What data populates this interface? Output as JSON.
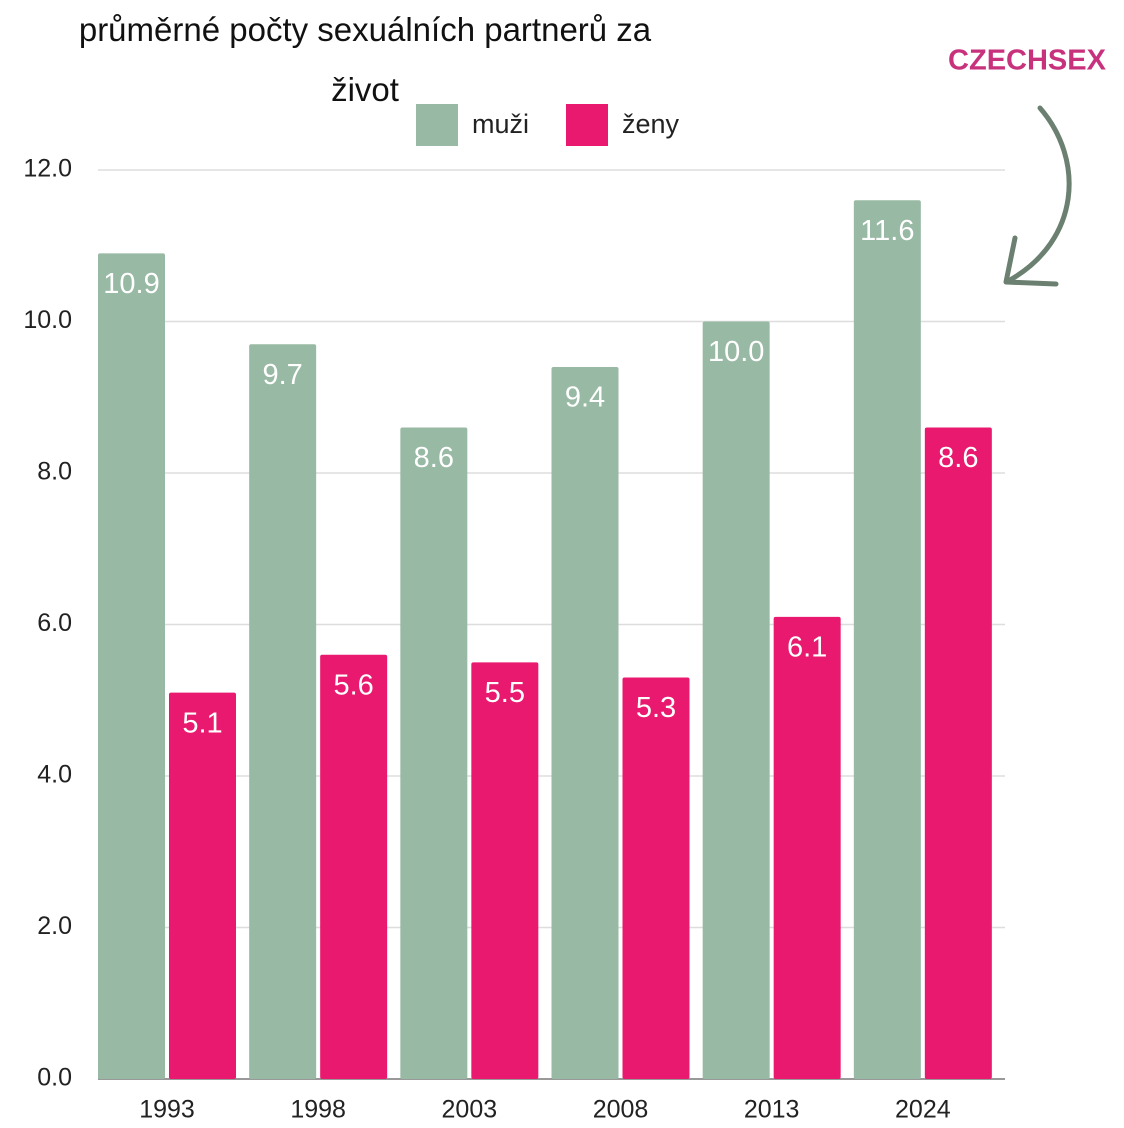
{
  "chart_data": {
    "type": "bar",
    "title": "průměrné počty sexuálních partnerů za život",
    "brand": "CZECHSEX",
    "categories": [
      "1993",
      "1998",
      "2003",
      "2008",
      "2013",
      "2024"
    ],
    "series": [
      {
        "name": "muži",
        "color": "#98b9a4",
        "values": [
          10.9,
          9.7,
          8.6,
          9.4,
          10.0,
          11.6
        ],
        "value_labels": [
          "10.9",
          "9.7",
          "8.6",
          "9.4",
          "10.0",
          "11.6"
        ]
      },
      {
        "name": "ženy",
        "color": "#e8196e",
        "values": [
          5.1,
          5.6,
          5.5,
          5.3,
          6.1,
          8.6
        ],
        "value_labels": [
          "5.1",
          "5.6",
          "5.5",
          "5.3",
          "6.1",
          "8.6"
        ]
      }
    ],
    "ylim": [
      0,
      12
    ],
    "yticks": [
      {
        "value": 0,
        "label": "0.0"
      },
      {
        "value": 2,
        "label": "2.0"
      },
      {
        "value": 4,
        "label": "4.0"
      },
      {
        "value": 6,
        "label": "6.0"
      },
      {
        "value": 8,
        "label": "8.0"
      },
      {
        "value": 10,
        "label": "10.0"
      },
      {
        "value": 12,
        "label": "12.0"
      }
    ],
    "grid": true
  }
}
